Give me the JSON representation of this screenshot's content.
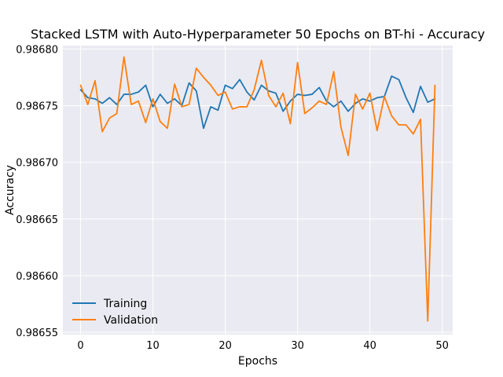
{
  "chart_data": {
    "type": "line",
    "title": "Stacked LSTM with Auto-Hyperparameter 50 Epochs on BT-hi - Accuracy",
    "xlabel": "Epochs",
    "ylabel": "Accuracy",
    "xlim": [
      -2.45,
      51.45
    ],
    "ylim": [
      0.986548,
      0.986803
    ],
    "xticks": [
      0,
      10,
      20,
      30,
      40,
      50
    ],
    "xtick_labels": [
      "0",
      "10",
      "20",
      "30",
      "40",
      "50"
    ],
    "yticks": [
      0.98655,
      0.9866,
      0.98665,
      0.9867,
      0.98675,
      0.9868
    ],
    "ytick_labels": [
      "0.98655",
      "0.98660",
      "0.98665",
      "0.98670",
      "0.98675",
      "0.98680"
    ],
    "grid": true,
    "legend_position": "lower-left",
    "background_color": "#eaeaf2",
    "x": [
      0,
      1,
      2,
      3,
      4,
      5,
      6,
      7,
      8,
      9,
      10,
      11,
      12,
      13,
      14,
      15,
      16,
      17,
      18,
      19,
      20,
      21,
      22,
      23,
      24,
      25,
      26,
      27,
      28,
      29,
      30,
      31,
      32,
      33,
      34,
      35,
      36,
      37,
      38,
      39,
      40,
      41,
      42,
      43,
      44,
      45,
      46,
      47,
      48,
      49
    ],
    "series": [
      {
        "name": "Training",
        "color": "#1f77b4",
        "values": [
          0.986764,
          0.986757,
          0.986756,
          0.986752,
          0.986757,
          0.986751,
          0.98676,
          0.98676,
          0.986762,
          0.986768,
          0.986749,
          0.98676,
          0.986752,
          0.986756,
          0.98675,
          0.98677,
          0.986763,
          0.98673,
          0.986749,
          0.986746,
          0.986768,
          0.986765,
          0.986773,
          0.986762,
          0.986755,
          0.986768,
          0.986763,
          0.986761,
          0.986745,
          0.986754,
          0.98676,
          0.986759,
          0.98676,
          0.986766,
          0.986754,
          0.986749,
          0.986754,
          0.986745,
          0.986752,
          0.986756,
          0.986754,
          0.986757,
          0.986758,
          0.986776,
          0.986773,
          0.986757,
          0.986744,
          0.986767,
          0.986753,
          0.986756
        ]
      },
      {
        "name": "Validation",
        "color": "#ff7f0e",
        "values": [
          0.986768,
          0.986751,
          0.986772,
          0.986727,
          0.986739,
          0.986743,
          0.986793,
          0.986751,
          0.986754,
          0.986735,
          0.986756,
          0.986736,
          0.98673,
          0.986769,
          0.986749,
          0.986751,
          0.986783,
          0.986775,
          0.986768,
          0.986759,
          0.986762,
          0.986747,
          0.986749,
          0.986749,
          0.986764,
          0.98679,
          0.986759,
          0.986749,
          0.986761,
          0.986734,
          0.986788,
          0.986743,
          0.986748,
          0.986754,
          0.986751,
          0.98678,
          0.986731,
          0.986706,
          0.98676,
          0.986747,
          0.986761,
          0.986728,
          0.986758,
          0.986741,
          0.986733,
          0.986733,
          0.986725,
          0.986738,
          0.98656,
          0.986768
        ]
      }
    ]
  }
}
